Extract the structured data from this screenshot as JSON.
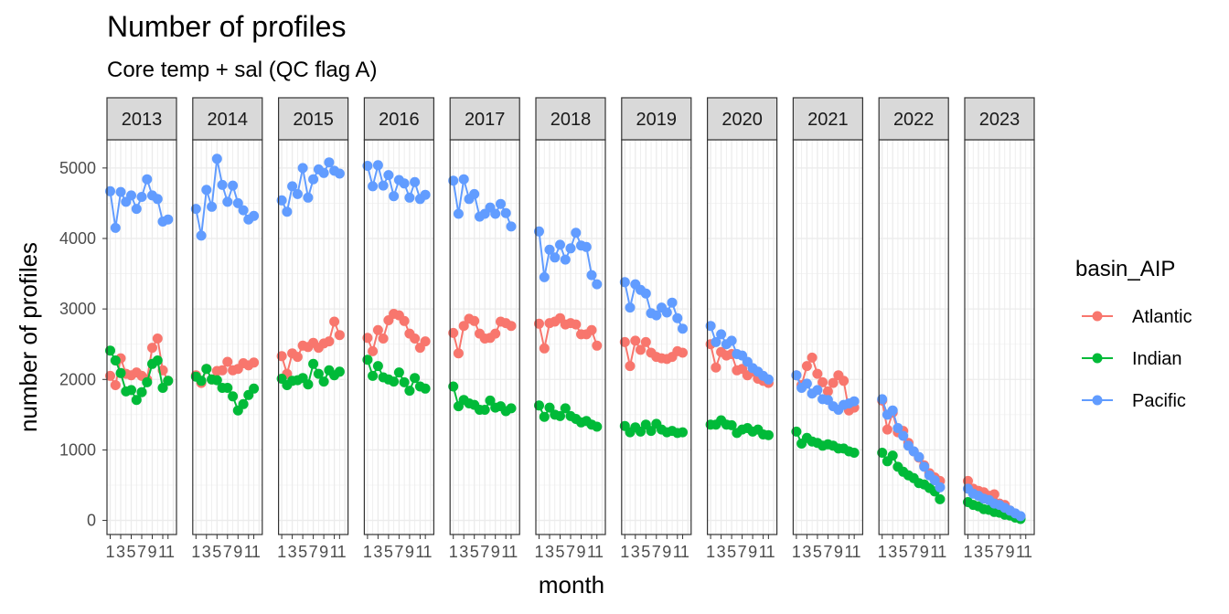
{
  "chart_data": {
    "type": "line",
    "title": "Number of profiles",
    "subtitle": "Core temp + sal (QC flag A)",
    "xlabel": "month",
    "ylabel": "number of profiles",
    "ylim": [
      -200,
      5400
    ],
    "y_ticks": [
      0,
      1000,
      2000,
      3000,
      4000,
      5000
    ],
    "x_tick_labels": [
      "1",
      "3",
      "5",
      "7",
      "9",
      "1",
      "1"
    ],
    "facet_var": "year",
    "facets": [
      "2013",
      "2014",
      "2015",
      "2016",
      "2017",
      "2018",
      "2019",
      "2020",
      "2021",
      "2022",
      "2023"
    ],
    "x": [
      1,
      2,
      3,
      4,
      5,
      6,
      7,
      8,
      9,
      10,
      11,
      12
    ],
    "legend": {
      "title": "basin_AIP",
      "placement": "right"
    },
    "series": [
      {
        "name": "Atlantic",
        "color": "#F8766D",
        "values_by_facet": {
          "2013": [
            2050,
            1920,
            2300,
            2080,
            2060,
            2100,
            2050,
            2000,
            2450,
            2580,
            2130,
            1980
          ],
          "2014": [
            2060,
            1950,
            2150,
            2000,
            2120,
            2130,
            2250,
            2130,
            2150,
            2230,
            2200,
            2240
          ],
          "2015": [
            2330,
            2080,
            2370,
            2320,
            2480,
            2460,
            2520,
            2450,
            2510,
            2540,
            2820,
            2630
          ],
          "2016": [
            2590,
            2400,
            2700,
            2580,
            2840,
            2930,
            2910,
            2830,
            2650,
            2580,
            2450,
            2540
          ],
          "2017": [
            2660,
            2370,
            2760,
            2860,
            2830,
            2650,
            2580,
            2590,
            2650,
            2820,
            2800,
            2760
          ],
          "2018": [
            2790,
            2440,
            2800,
            2820,
            2870,
            2780,
            2800,
            2780,
            2640,
            2640,
            2700,
            2480
          ],
          "2019": [
            2530,
            2190,
            2550,
            2420,
            2530,
            2380,
            2320,
            2300,
            2290,
            2320,
            2400,
            2380
          ],
          "2020": [
            2500,
            2170,
            2390,
            2340,
            2360,
            2130,
            2150,
            2060,
            2110,
            2010,
            1980,
            1950
          ],
          "2021": [
            2060,
            1920,
            2190,
            2310,
            2080,
            1960,
            1830,
            1950,
            2060,
            1980,
            1560,
            1600
          ],
          "2022": [
            1700,
            1290,
            1530,
            1250,
            1270,
            1100,
            980,
            890,
            780,
            670,
            610,
            560
          ],
          "2023": [
            560,
            450,
            420,
            400,
            350,
            370,
            240,
            220,
            140,
            80,
            30,
            null
          ]
        }
      },
      {
        "name": "Indian",
        "color": "#00BA38",
        "values_by_facet": {
          "2013": [
            2410,
            2270,
            2090,
            1830,
            1850,
            1710,
            1820,
            1960,
            2220,
            2270,
            1880,
            1980
          ],
          "2014": [
            2040,
            1980,
            2150,
            2000,
            1990,
            1880,
            1880,
            1760,
            1560,
            1650,
            1780,
            1870
          ],
          "2015": [
            2010,
            1920,
            1980,
            1990,
            2020,
            1930,
            2220,
            2080,
            1970,
            2130,
            2060,
            2110
          ],
          "2016": [
            2280,
            2050,
            2190,
            2030,
            2000,
            1970,
            2100,
            1960,
            1840,
            2020,
            1900,
            1870
          ],
          "2017": [
            1900,
            1620,
            1710,
            1660,
            1640,
            1570,
            1570,
            1700,
            1600,
            1620,
            1550,
            1590
          ],
          "2018": [
            1630,
            1470,
            1600,
            1500,
            1480,
            1590,
            1480,
            1440,
            1390,
            1410,
            1360,
            1330
          ],
          "2019": [
            1340,
            1250,
            1320,
            1260,
            1360,
            1270,
            1370,
            1290,
            1250,
            1270,
            1240,
            1250
          ],
          "2020": [
            1360,
            1360,
            1420,
            1360,
            1350,
            1240,
            1290,
            1310,
            1260,
            1290,
            1220,
            1210
          ],
          "2021": [
            1260,
            1090,
            1170,
            1120,
            1100,
            1060,
            1080,
            1060,
            1020,
            1020,
            980,
            960
          ],
          "2022": [
            960,
            840,
            920,
            760,
            690,
            640,
            600,
            530,
            510,
            460,
            410,
            300
          ],
          "2023": [
            260,
            220,
            200,
            160,
            150,
            120,
            110,
            80,
            70,
            40,
            20,
            null
          ]
        }
      },
      {
        "name": "Pacific",
        "color": "#619CFF",
        "values_by_facet": {
          "2013": [
            4670,
            4150,
            4660,
            4520,
            4610,
            4420,
            4590,
            4840,
            4610,
            4560,
            4240,
            4270
          ],
          "2014": [
            4420,
            4040,
            4690,
            4450,
            5130,
            4760,
            4520,
            4750,
            4500,
            4400,
            4270,
            4320
          ],
          "2015": [
            4540,
            4380,
            4740,
            4630,
            5000,
            4580,
            4840,
            4980,
            4930,
            5080,
            4960,
            4920
          ],
          "2016": [
            5030,
            4740,
            5040,
            4750,
            4900,
            4600,
            4830,
            4780,
            4580,
            4800,
            4560,
            4620
          ],
          "2017": [
            4820,
            4350,
            4840,
            4560,
            4630,
            4310,
            4350,
            4440,
            4350,
            4490,
            4360,
            4170
          ],
          "2018": [
            4100,
            3450,
            3840,
            3730,
            3910,
            3700,
            3860,
            4080,
            3900,
            3880,
            3480,
            3350
          ],
          "2019": [
            3380,
            3020,
            3350,
            3270,
            3220,
            2940,
            2910,
            3020,
            2950,
            3090,
            2870,
            2720
          ],
          "2020": [
            2760,
            2530,
            2640,
            2500,
            2550,
            2360,
            2340,
            2250,
            2160,
            2110,
            2050,
            2000
          ],
          "2021": [
            2060,
            1880,
            1940,
            1800,
            1850,
            1720,
            1710,
            1620,
            1570,
            1640,
            1660,
            1690
          ],
          "2022": [
            1720,
            1500,
            1560,
            1310,
            1200,
            1060,
            980,
            900,
            760,
            640,
            570,
            470
          ],
          "2023": [
            450,
            380,
            350,
            310,
            290,
            240,
            220,
            180,
            140,
            100,
            60,
            null
          ]
        }
      }
    ]
  }
}
